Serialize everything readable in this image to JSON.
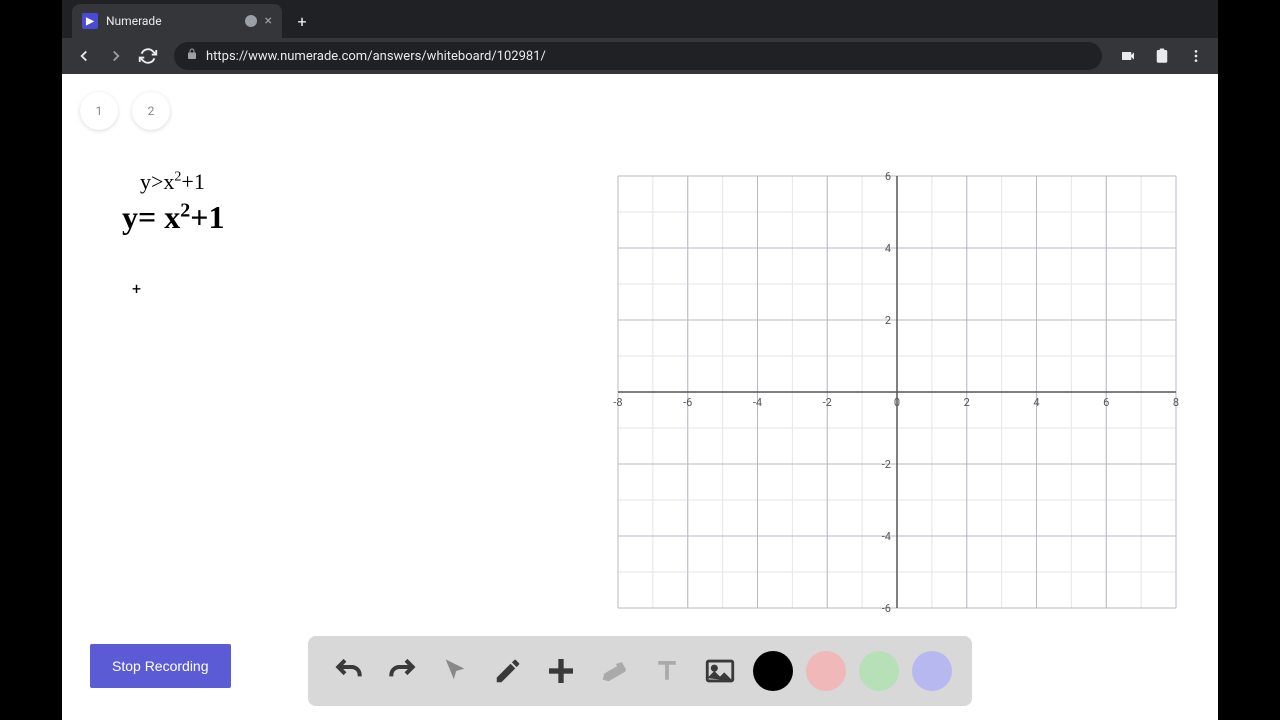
{
  "browser": {
    "tab_title": "Numerade",
    "url": "https://www.numerade.com/answers/whiteboard/102981/"
  },
  "page_tabs": [
    "1",
    "2"
  ],
  "equations": {
    "typed": "y>x²+1",
    "handwritten": "y= x²+1"
  },
  "graph": {
    "x_min": -8,
    "x_max": 8,
    "x_step": 2,
    "y_min": -6,
    "y_max": 6,
    "y_step": 2,
    "x_labels": [
      "-8",
      "-6",
      "-4",
      "-2",
      "0",
      "2",
      "4",
      "6",
      "8"
    ],
    "y_labels_pos": [
      "2",
      "4",
      "6"
    ],
    "y_labels_neg": [
      "-2",
      "-4",
      "-6"
    ],
    "minor_per_major": 2,
    "axis_color": "#555555",
    "major_grid_color": "#b8b8c8",
    "minor_grid_color": "#e4e4ec",
    "label_color": "#555555",
    "label_fontsize": 11
  },
  "record_button": "Stop Recording",
  "toolbar": {
    "tools": [
      "undo",
      "redo",
      "pointer",
      "pencil",
      "plus",
      "eraser",
      "text",
      "image"
    ],
    "colors": [
      "#000000",
      "#f0b8b8",
      "#b8e0b8",
      "#b8b8f0"
    ]
  }
}
